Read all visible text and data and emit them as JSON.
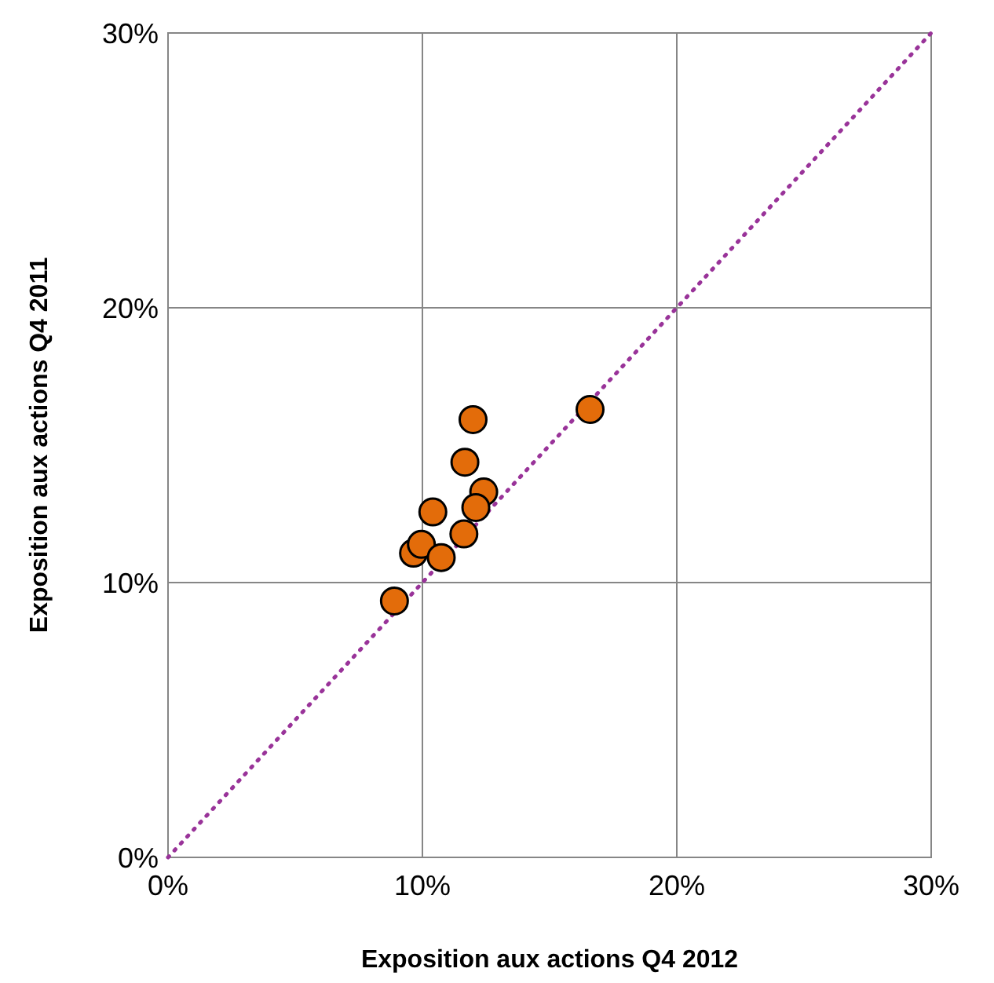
{
  "chart_data": {
    "type": "scatter",
    "xlabel": "Exposition aux actions Q4 2012",
    "ylabel": "Exposition aux actions Q4 2011",
    "xlim": [
      0,
      30
    ],
    "ylim": [
      0,
      30
    ],
    "xticks": [
      {
        "value": 0,
        "label": "0%"
      },
      {
        "value": 10,
        "label": "10%"
      },
      {
        "value": 20,
        "label": "20%"
      },
      {
        "value": 30,
        "label": "30%"
      }
    ],
    "yticks": [
      {
        "value": 0,
        "label": "0%"
      },
      {
        "value": 10,
        "label": "10%"
      },
      {
        "value": 20,
        "label": "20%"
      },
      {
        "value": 30,
        "label": "30%"
      }
    ],
    "grid": true,
    "series": [
      {
        "type": "line",
        "color": "#993399",
        "line_style": "dotted",
        "x": [
          0,
          30
        ],
        "values": [
          0,
          30
        ]
      },
      {
        "color": "#e36c0a",
        "marker": "circle",
        "x": [
          8.9,
          9.65,
          9.96,
          10.74,
          10.41,
          11.63,
          12.41,
          12.1,
          11.67,
          11.99,
          16.59
        ],
        "values": [
          9.33,
          11.07,
          11.39,
          10.91,
          12.57,
          11.77,
          13.3,
          12.73,
          14.38,
          15.93,
          16.3
        ]
      }
    ]
  }
}
